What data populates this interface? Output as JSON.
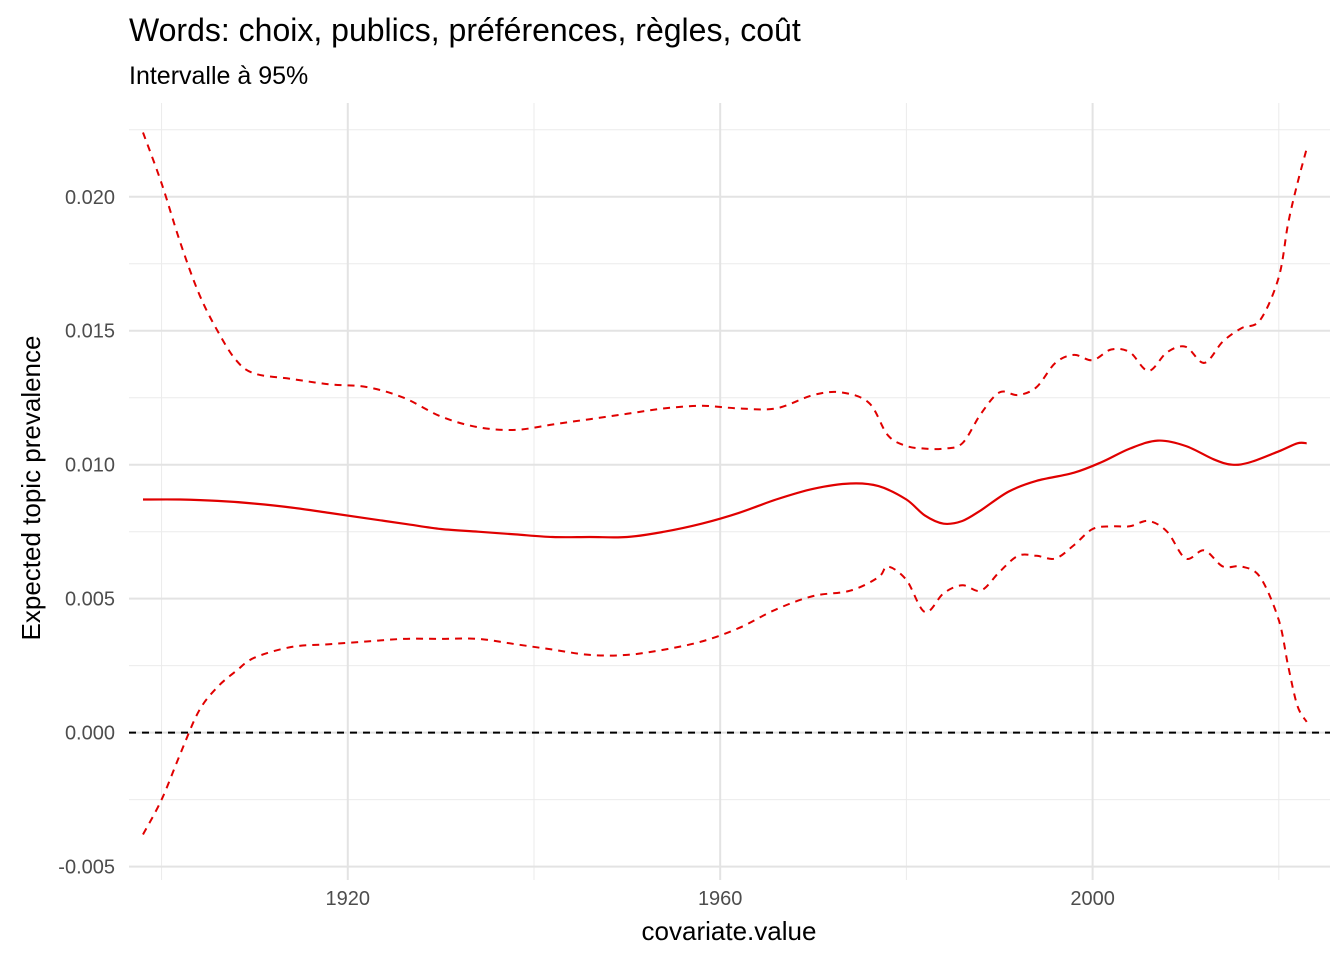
{
  "chart_data": {
    "type": "line",
    "title": "Words: choix, publics, préférences, règles, coût",
    "subtitle": "Intervalle à 95%",
    "xlabel": "covariate.value",
    "ylabel": "Expected topic prevalence",
    "xlim": [
      1896.5,
      2025.5
    ],
    "ylim": [
      -0.0055,
      0.0235
    ],
    "x_major_ticks": [
      1920,
      1960,
      2000
    ],
    "x_tick_labels": [
      "1920",
      "1960",
      "2000"
    ],
    "x_minor_ticks": [
      1900,
      1940,
      1980,
      2020
    ],
    "y_major_ticks": [
      -0.005,
      0.0,
      0.005,
      0.01,
      0.015,
      0.02
    ],
    "y_tick_labels": [
      "-0.005",
      "0.000",
      "0.005",
      "0.010",
      "0.015",
      "0.020"
    ],
    "y_minor_ticks": [
      -0.0025,
      0.0025,
      0.0075,
      0.0125,
      0.0175,
      0.0225
    ],
    "grid": true,
    "reference_line": {
      "y": 0.0,
      "color": "#000000",
      "style": "dashed"
    },
    "series": [
      {
        "role": "estimate",
        "color": "#e00000",
        "style": "solid",
        "x": [
          1898,
          1902,
          1906,
          1910,
          1914,
          1918,
          1922,
          1926,
          1930,
          1934,
          1938,
          1942,
          1946,
          1950,
          1954,
          1958,
          1962,
          1966,
          1970,
          1974,
          1977,
          1980,
          1982,
          1984,
          1986,
          1988,
          1991,
          1994,
          1998,
          2001,
          2004,
          2007,
          2010,
          2013,
          2015,
          2017,
          2020,
          2022,
          2023
        ],
        "y": [
          0.0087,
          0.0087,
          0.00865,
          0.00855,
          0.0084,
          0.0082,
          0.008,
          0.0078,
          0.0076,
          0.0075,
          0.0074,
          0.0073,
          0.0073,
          0.0073,
          0.0075,
          0.0078,
          0.0082,
          0.0087,
          0.0091,
          0.0093,
          0.0092,
          0.0087,
          0.0081,
          0.0078,
          0.0079,
          0.0083,
          0.009,
          0.0094,
          0.0097,
          0.0101,
          0.0106,
          0.0109,
          0.0107,
          0.0102,
          0.01,
          0.0101,
          0.0105,
          0.0108,
          0.0108
        ]
      },
      {
        "role": "upper",
        "color": "#e00000",
        "style": "dashed",
        "x": [
          1898,
          1900,
          1902,
          1904,
          1906,
          1908,
          1910,
          1914,
          1918,
          1922,
          1926,
          1930,
          1934,
          1938,
          1942,
          1946,
          1950,
          1954,
          1958,
          1962,
          1966,
          1970,
          1973,
          1976,
          1978,
          1980,
          1982,
          1984,
          1986,
          1988,
          1990,
          1992,
          1994,
          1996,
          1998,
          2000,
          2002,
          2004,
          2006,
          2008,
          2010,
          2012,
          2014,
          2016,
          2018,
          2020,
          2021,
          2022,
          2023
        ],
        "y": [
          0.0224,
          0.0205,
          0.0183,
          0.0164,
          0.015,
          0.0139,
          0.0134,
          0.0132,
          0.013,
          0.0129,
          0.0125,
          0.0118,
          0.0114,
          0.0113,
          0.0115,
          0.0117,
          0.0119,
          0.0121,
          0.0122,
          0.0121,
          0.0121,
          0.0126,
          0.0127,
          0.0123,
          0.0111,
          0.0107,
          0.0106,
          0.0106,
          0.0108,
          0.0119,
          0.0127,
          0.0126,
          0.0129,
          0.0138,
          0.0141,
          0.0139,
          0.0143,
          0.0142,
          0.0135,
          0.0142,
          0.0144,
          0.0138,
          0.0146,
          0.0151,
          0.0154,
          0.017,
          0.019,
          0.0205,
          0.0218
        ]
      },
      {
        "role": "lower",
        "color": "#e00000",
        "style": "dashed",
        "x": [
          1898,
          1900,
          1902,
          1904,
          1906,
          1908,
          1910,
          1914,
          1918,
          1922,
          1926,
          1930,
          1934,
          1938,
          1942,
          1946,
          1950,
          1954,
          1958,
          1962,
          1966,
          1970,
          1974,
          1977,
          1978,
          1980,
          1982,
          1984,
          1986,
          1988,
          1990,
          1992,
          1994,
          1996,
          1998,
          2000,
          2002,
          2004,
          2006,
          2008,
          2010,
          2012,
          2014,
          2016,
          2018,
          2020,
          2021,
          2022,
          2023
        ],
        "y": [
          -0.0038,
          -0.0025,
          -0.0008,
          0.0008,
          0.0017,
          0.0023,
          0.0028,
          0.0032,
          0.0033,
          0.0034,
          0.0035,
          0.0035,
          0.0035,
          0.0033,
          0.0031,
          0.0029,
          0.0029,
          0.0031,
          0.0034,
          0.0039,
          0.0046,
          0.0051,
          0.0053,
          0.0058,
          0.0062,
          0.0057,
          0.0045,
          0.0052,
          0.0055,
          0.0053,
          0.006,
          0.0066,
          0.0066,
          0.0065,
          0.007,
          0.0076,
          0.0077,
          0.0077,
          0.0079,
          0.0075,
          0.0065,
          0.0068,
          0.0062,
          0.0062,
          0.0058,
          0.0042,
          0.0025,
          0.001,
          0.0004
        ]
      }
    ]
  }
}
